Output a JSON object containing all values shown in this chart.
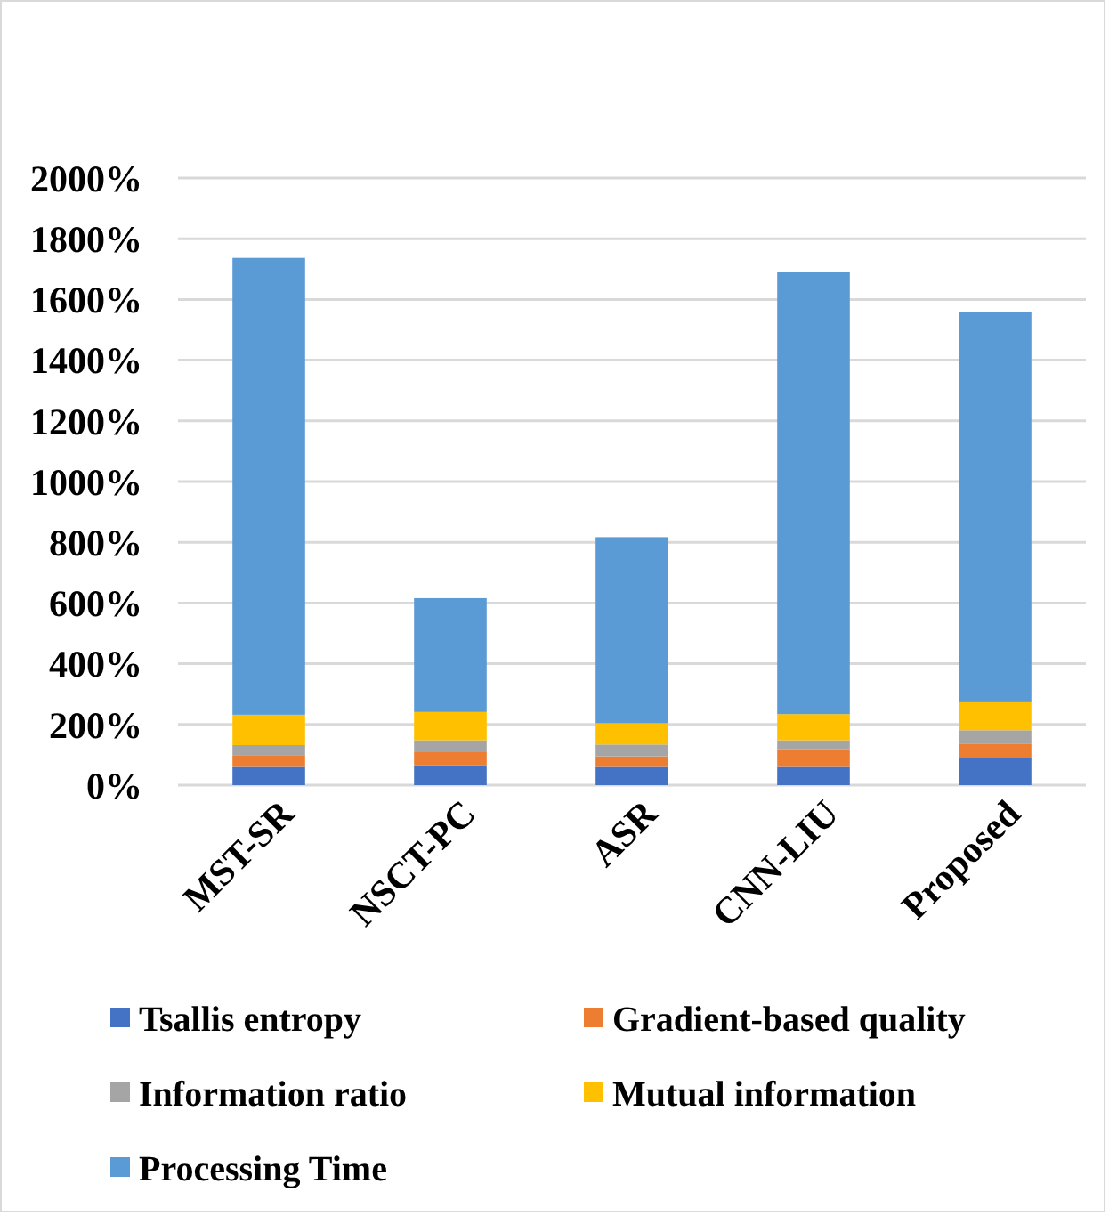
{
  "chart_data": {
    "type": "bar",
    "stacked": true,
    "categories": [
      "MST-SR",
      "NSCT-PC",
      "ASR",
      "CNN-LIU",
      "Proposed"
    ],
    "series": [
      {
        "name": "Tsallis entropy",
        "color": "#4472c4",
        "values": [
          60,
          65,
          60,
          60,
          93
        ]
      },
      {
        "name": "Gradient-based quality",
        "color": "#ed7d31",
        "values": [
          37,
          46,
          35,
          58,
          44
        ]
      },
      {
        "name": "Information ratio",
        "color": "#a5a5a5",
        "values": [
          35,
          37,
          39,
          30,
          44
        ]
      },
      {
        "name": "Mutual information",
        "color": "#ffc000",
        "values": [
          100,
          93,
          70,
          86,
          92
        ]
      },
      {
        "name": "Processing Time",
        "color": "#5b9bd5",
        "values": [
          1505,
          375,
          613,
          1458,
          1285
        ]
      }
    ],
    "ylim": [
      0,
      2000
    ],
    "yticks": [
      {
        "value": 0,
        "label": "0%"
      },
      {
        "value": 200,
        "label": "200%"
      },
      {
        "value": 400,
        "label": "400%"
      },
      {
        "value": 600,
        "label": "600%"
      },
      {
        "value": 800,
        "label": "800%"
      },
      {
        "value": 1000,
        "label": "1000%"
      },
      {
        "value": 1200,
        "label": "1200%"
      },
      {
        "value": 1400,
        "label": "1400%"
      },
      {
        "value": 1600,
        "label": "1600%"
      },
      {
        "value": 1800,
        "label": "1800%"
      },
      {
        "value": 2000,
        "label": "2000%"
      }
    ],
    "grid": "y",
    "legend": "bottom"
  }
}
